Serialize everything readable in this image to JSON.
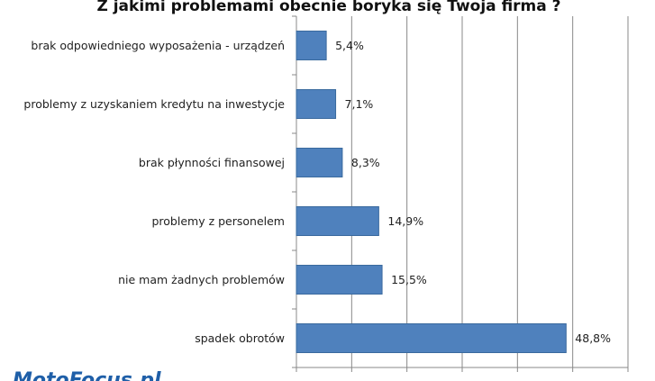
{
  "chart_data": {
    "type": "bar",
    "orientation": "horizontal",
    "title": "Z jakimi problemami obecnie boryka się Twoja firma  ?",
    "categories": [
      "brak odpowiedniego wyposażenia - urządzeń",
      "problemy z uzyskaniem kredytu na inwestycje",
      "brak płynności finansowej",
      "problemy z personelem",
      "nie mam żadnych problemów",
      "spadek obrotów"
    ],
    "values": [
      5.4,
      7.1,
      8.3,
      14.9,
      15.5,
      48.8
    ],
    "value_labels": [
      "5,4%",
      "7,1%",
      "8,3%",
      "14,9%",
      "15,5%",
      "48,8%"
    ],
    "color": "#4f81bd",
    "xlim": [
      0,
      60
    ],
    "xticks": [
      0,
      10,
      20,
      30,
      40,
      50,
      60
    ],
    "grid": true
  },
  "logo": "MotoFocus.pl"
}
